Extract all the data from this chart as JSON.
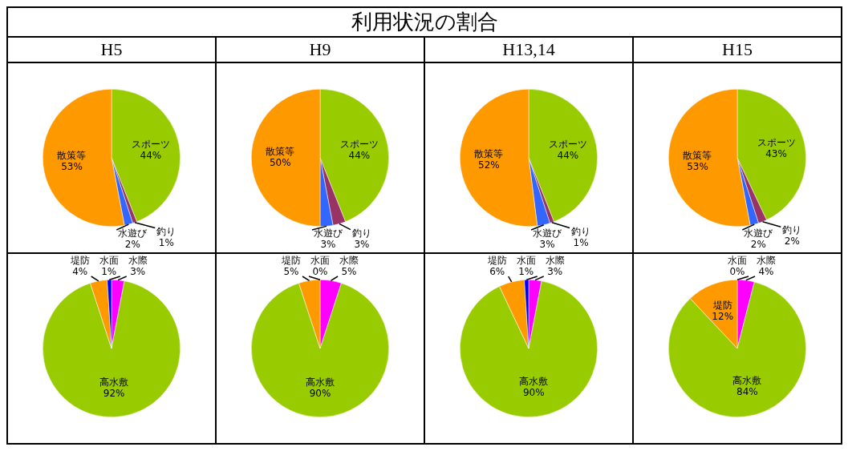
{
  "chart_data": [
    {
      "type": "pie",
      "title": "H5",
      "annotations": [
        "利用状況の割合"
      ],
      "categories": [
        "スポーツ",
        "釣り",
        "水遊び",
        "散策等"
      ],
      "values": [
        44,
        1,
        2,
        53
      ],
      "colors": [
        "#99cc00",
        "#993366",
        "#3366ff",
        "#ff9900"
      ],
      "value_labels": [
        "44%",
        "1%",
        "2%",
        "53%"
      ]
    },
    {
      "type": "pie",
      "title": "H9",
      "categories": [
        "スポーツ",
        "釣り",
        "水遊び",
        "散策等"
      ],
      "values": [
        44,
        3,
        3,
        50
      ],
      "colors": [
        "#99cc00",
        "#993366",
        "#3366ff",
        "#ff9900"
      ],
      "value_labels": [
        "44%",
        "3%",
        "3%",
        "50%"
      ]
    },
    {
      "type": "pie",
      "title": "H13,14",
      "categories": [
        "スポーツ",
        "釣り",
        "水遊び",
        "散策等"
      ],
      "values": [
        44,
        1,
        3,
        52
      ],
      "colors": [
        "#99cc00",
        "#993366",
        "#3366ff",
        "#ff9900"
      ],
      "value_labels": [
        "44%",
        "1%",
        "3%",
        "52%"
      ]
    },
    {
      "type": "pie",
      "title": "H15",
      "categories": [
        "スポーツ",
        "釣り",
        "水遊び",
        "散策等"
      ],
      "values": [
        43,
        2,
        2,
        53
      ],
      "colors": [
        "#99cc00",
        "#993366",
        "#3366ff",
        "#ff9900"
      ],
      "value_labels": [
        "43%",
        "2%",
        "2%",
        "53%"
      ]
    },
    {
      "type": "pie",
      "categories": [
        "水際",
        "高水敷",
        "堤防",
        "水面"
      ],
      "values": [
        3,
        92,
        4,
        1
      ],
      "colors": [
        "#ff00ff",
        "#99cc00",
        "#ff9900",
        "#0000ff"
      ],
      "value_labels": [
        "3%",
        "92%",
        "4%",
        "1%"
      ]
    },
    {
      "type": "pie",
      "categories": [
        "水際",
        "高水敷",
        "堤防",
        "水面"
      ],
      "values": [
        5,
        90,
        5,
        0
      ],
      "colors": [
        "#ff00ff",
        "#99cc00",
        "#ff9900",
        "#0000ff"
      ],
      "value_labels": [
        "5%",
        "90%",
        "5%",
        "0%"
      ]
    },
    {
      "type": "pie",
      "categories": [
        "水際",
        "高水敷",
        "堤防",
        "水面"
      ],
      "values": [
        3,
        90,
        6,
        1
      ],
      "colors": [
        "#ff00ff",
        "#99cc00",
        "#ff9900",
        "#0000ff"
      ],
      "value_labels": [
        "3%",
        "90%",
        "6%",
        "1%"
      ]
    },
    {
      "type": "pie",
      "categories": [
        "水際",
        "高水敷",
        "堤防",
        "水面"
      ],
      "values": [
        4,
        84,
        12,
        0
      ],
      "colors": [
        "#ff00ff",
        "#99cc00",
        "#ff9900",
        "#0000ff"
      ],
      "value_labels": [
        "4%",
        "84%",
        "12%",
        "0%"
      ]
    }
  ]
}
